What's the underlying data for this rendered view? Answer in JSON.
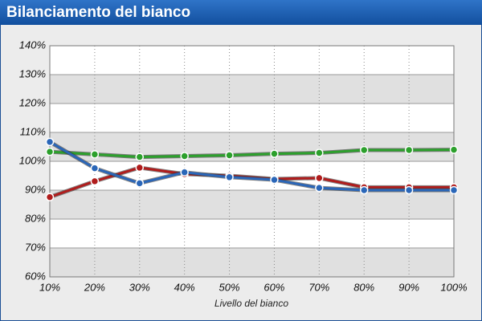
{
  "chart_data": {
    "type": "line",
    "title": "Bilanciamento del bianco",
    "x_label": "Livello del bianco",
    "x": [
      10,
      20,
      30,
      40,
      50,
      60,
      70,
      80,
      90,
      100
    ],
    "xlim": [
      10,
      100
    ],
    "xticks": [
      {
        "value": 10,
        "label": "10%"
      },
      {
        "value": 20,
        "label": "20%"
      },
      {
        "value": 30,
        "label": "30%"
      },
      {
        "value": 40,
        "label": "40%"
      },
      {
        "value": 50,
        "label": "50%"
      },
      {
        "value": 60,
        "label": "60%"
      },
      {
        "value": 70,
        "label": "70%"
      },
      {
        "value": 80,
        "label": "80%"
      },
      {
        "value": 90,
        "label": "90%"
      },
      {
        "value": 100,
        "label": "100%"
      }
    ],
    "ylim": [
      60,
      140
    ],
    "yticks": [
      {
        "value": 60,
        "label": "60%"
      },
      {
        "value": 70,
        "label": "70%"
      },
      {
        "value": 80,
        "label": "80%"
      },
      {
        "value": 90,
        "label": "90%"
      },
      {
        "value": 100,
        "label": "100%"
      },
      {
        "value": 110,
        "label": "110%"
      },
      {
        "value": 120,
        "label": "120%"
      },
      {
        "value": 130,
        "label": "130%"
      },
      {
        "value": 140,
        "label": "140%"
      }
    ],
    "grid": true,
    "series": [
      {
        "color": "#2ca02c",
        "values": [
          103.3,
          102.4,
          101.5,
          101.8,
          102.1,
          102.6,
          102.9,
          103.9,
          103.9,
          104.0
        ]
      },
      {
        "color": "#b01c1c",
        "values": [
          87.6,
          93.1,
          97.8,
          95.6,
          95.0,
          93.9,
          94.2,
          91.0,
          91.0,
          91.0
        ]
      },
      {
        "color": "#2a66b8",
        "values": [
          106.7,
          97.6,
          92.4,
          96.2,
          94.5,
          93.6,
          90.8,
          90.0,
          90.0,
          90.0
        ]
      }
    ]
  }
}
